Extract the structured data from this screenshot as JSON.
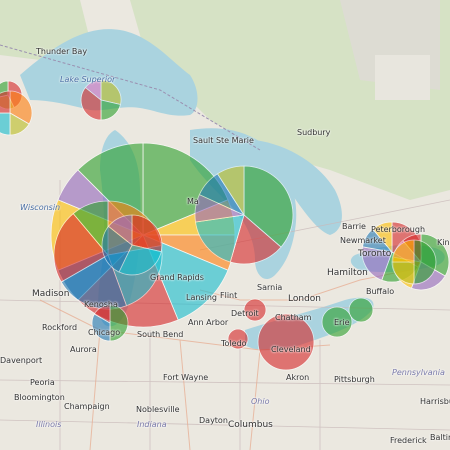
{
  "map": {
    "colors": {
      "water": "#aad3df",
      "land": "#ebe8e0",
      "forest": "#c5dcae",
      "marker_palette": [
        "#2ca02c",
        "#d62728",
        "#ffbf00",
        "#1f77b4",
        "#ff7f0e",
        "#9467bd",
        "#17becf",
        "#bcbd22",
        "#e377c2",
        "#8c564b"
      ]
    },
    "labels": {
      "thunder_bay": "Thunder Bay",
      "lake_superior": "Lake Superior",
      "sault_ste_marie": "Sault Ste Marie",
      "sudbury": "Sudbury",
      "wisconsin": "Wisconsin",
      "madison": "Madison",
      "rockford": "Rockford",
      "aurora": "Aurora",
      "chicago": "Chicago",
      "south_bend": "South Bend",
      "grand_rapids": "Grand Rapids",
      "lansing": "Lansing",
      "flint": "Flint",
      "ann_arbor": "Ann Arbor",
      "detroit": "Detroit",
      "toledo": "Toledo",
      "sarnia": "Sarnia",
      "london": "London",
      "chatham": "Chatham",
      "cleveland": "Cleveland",
      "erie": "Erie",
      "barrie": "Barrie",
      "newmarket": "Newmarket",
      "toronto": "Toronto",
      "peterborough": "Peterborough",
      "kingston": "King",
      "hamilton": "Hamilton",
      "buffalo": "Buffalo",
      "davenport": "Davenport",
      "peoria": "Peoria",
      "bloomington": "Bloomington",
      "champaign": "Champaign",
      "fort_wayne": "Fort Wayne",
      "noblesville": "Noblesville",
      "indiana": "Indiana",
      "illinois": "Illinois",
      "dayton": "Dayton",
      "columbus": "Columbus",
      "ohio": "Ohio",
      "akron": "Akron",
      "pittsburgh": "Pittsburgh",
      "pennsylvania": "Pennsylvania",
      "harrisburg": "Harrisburg",
      "frederick": "Frederick",
      "baltimore": "Baltim",
      "kenosha": "Kenosha",
      "ma": "Ma"
    }
  }
}
